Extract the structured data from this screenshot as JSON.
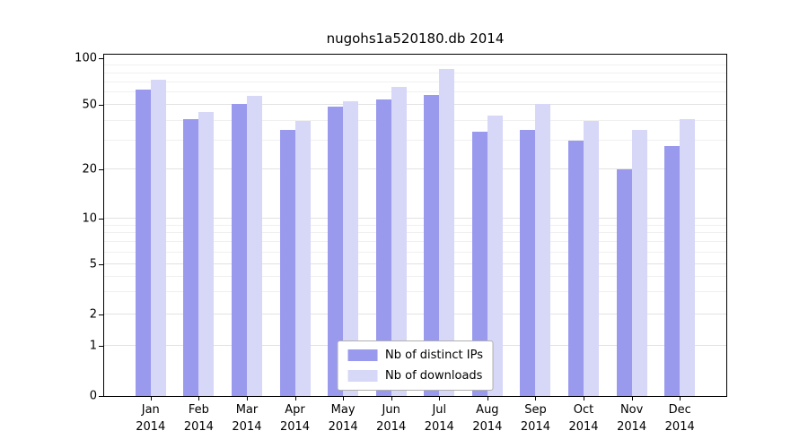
{
  "title": "nugohs1a520180.db 2014",
  "year": "2014",
  "chart_data": {
    "type": "bar",
    "title": "nugohs1a520180.db 2014",
    "categories": [
      "Jan 2014",
      "Feb 2014",
      "Mar 2014",
      "Apr 2014",
      "May 2014",
      "Jun 2014",
      "Jul 2014",
      "Aug 2014",
      "Sep 2014",
      "Oct 2014",
      "Nov 2014",
      "Dec 2014"
    ],
    "months": [
      "Jan",
      "Feb",
      "Mar",
      "Apr",
      "May",
      "Jun",
      "Jul",
      "Aug",
      "Sep",
      "Oct",
      "Nov",
      "Dec"
    ],
    "series": [
      {
        "name": "Nb of distinct IPs",
        "color": "#9999ee",
        "values": [
          63,
          41,
          51,
          35,
          49,
          54,
          58,
          34,
          35,
          30,
          20,
          28
        ]
      },
      {
        "name": "Nb of downloads",
        "color": "#d7d7f8",
        "values": [
          73,
          45,
          57,
          40,
          53,
          65,
          85,
          43,
          51,
          40,
          35,
          41
        ]
      }
    ],
    "xlabel": "",
    "ylabel": "",
    "yscale": "symlog",
    "ylim": [
      0,
      100
    ],
    "yticks": [
      0,
      1,
      2,
      5,
      10,
      20,
      50,
      100
    ],
    "minor_gridlines": [
      3,
      4,
      6,
      7,
      8,
      9,
      30,
      40,
      60,
      70,
      80,
      90
    ],
    "grid": true,
    "legend_position": "lower center"
  }
}
